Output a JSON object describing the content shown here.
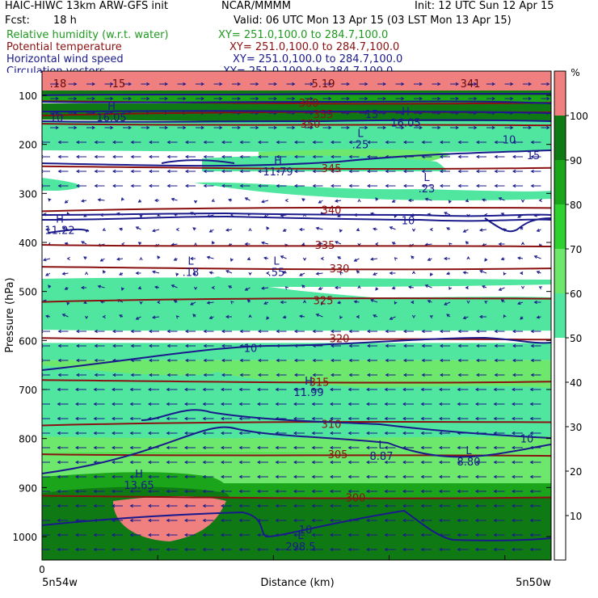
{
  "header": {
    "model": "HAIC-HIWC 13km ARW-GFS init",
    "org": "NCAR/MMMM",
    "init": "Init: 12 UTC Sun 12 Apr 15",
    "fcst_label": "Fcst:",
    "fcst_value": "18 h",
    "valid": "Valid: 06 UTC Mon 13 Apr 15 (03 LST Mon 13 Apr 15)"
  },
  "fields": [
    {
      "name": "Relative humidity (w.r.t. water)",
      "xy": "XY= 251.0,100.0 to 284.7,100.0",
      "color": "#1f9a1f"
    },
    {
      "name": "Potential temperature",
      "xy": "XY= 251.0,100.0 to 284.7,100.0",
      "color": "#8b1010"
    },
    {
      "name": "Horizontal wind speed",
      "xy": "XY= 251.0,100.0 to 284.7,100.0",
      "color": "#1a1a8c"
    },
    {
      "name": "Circulation vectors",
      "xy": "XY= 251.0,100.0 to 284.7,100.0",
      "color": "#1a1a8c"
    }
  ],
  "chart_data": {
    "type": "cross-section contour",
    "xlabel": "Distance (km)",
    "ylabel": "Pressure (hPa)",
    "x_start_label": "5n54w",
    "x_end_label": "5n50w",
    "x_zero_label": "0",
    "y_ticks": [
      100,
      200,
      300,
      400,
      500,
      600,
      700,
      800,
      900,
      1000
    ],
    "ylim": [
      1050,
      60
    ],
    "colorbar": {
      "unit": "%",
      "ticks": [
        10,
        20,
        30,
        40,
        50,
        60,
        70,
        80,
        90,
        100
      ],
      "bands": [
        {
          "from": 0,
          "to": 50,
          "color": "#ffffff"
        },
        {
          "from": 50,
          "to": 60,
          "color": "#50e6a0"
        },
        {
          "from": 60,
          "to": 70,
          "color": "#6de86d"
        },
        {
          "from": 70,
          "to": 80,
          "color": "#2ed12e"
        },
        {
          "from": 80,
          "to": 90,
          "color": "#1aa51a"
        },
        {
          "from": 90,
          "to": 100,
          "color": "#0f7a14"
        },
        {
          "from": 100,
          "to": 110,
          "color": "#f08080"
        }
      ]
    },
    "theta_contours": {
      "color": "#8b1010",
      "levels": [
        {
          "label": "300",
          "p": 920
        },
        {
          "label": "305",
          "p": 832
        },
        {
          "label": "310",
          "p": 770
        },
        {
          "label": "315",
          "p": 684
        },
        {
          "label": "320",
          "p": 595
        },
        {
          "label": "325",
          "p": 518
        },
        {
          "label": "330",
          "p": 453
        },
        {
          "label": "335",
          "p": 405
        },
        {
          "label": "340",
          "p": 333
        },
        {
          "label": "345",
          "p": 248
        },
        {
          "label": "350",
          "p": 158
        },
        {
          "label": "355",
          "p": 138
        },
        {
          "label": "360",
          "p": 115
        }
      ]
    },
    "wind_labels": [
      {
        "text": "10",
        "p": 615
      },
      {
        "text": "10",
        "p": 800
      },
      {
        "text": "10",
        "p": 985
      },
      {
        "text": "10",
        "p": 355
      },
      {
        "text": "10",
        "p": 190
      },
      {
        "text": "15",
        "p": 138
      },
      {
        "text": "15",
        "p": 222
      },
      {
        "text": "10",
        "p": 145
      }
    ],
    "extrema": [
      {
        "type": "H",
        "value": "13.65",
        "p": 880
      },
      {
        "type": "L",
        "value": "8.87",
        "p": 820
      },
      {
        "type": "L",
        "value": "8.80",
        "p": 832
      },
      {
        "type": "H",
        "value": "11.99",
        "p": 690
      },
      {
        "type": "L",
        "value": ".18",
        "p": 445
      },
      {
        "type": "L",
        "value": ".55",
        "p": 445
      },
      {
        "type": "H",
        "value": "11.22",
        "p": 360
      },
      {
        "type": "L",
        "value": ".23",
        "p": 275
      },
      {
        "type": "H",
        "value": "11.79",
        "p": 240
      },
      {
        "type": "L",
        "value": ".25",
        "p": 185
      },
      {
        "type": "H",
        "value": "16.05",
        "p": 130
      },
      {
        "type": "H",
        "value": "16.05",
        "p": 140
      },
      {
        "type": "L",
        "value": "298.5",
        "p": 1005
      }
    ],
    "top_labels": [
      ".18",
      ".15",
      "5.19",
      "341"
    ]
  }
}
